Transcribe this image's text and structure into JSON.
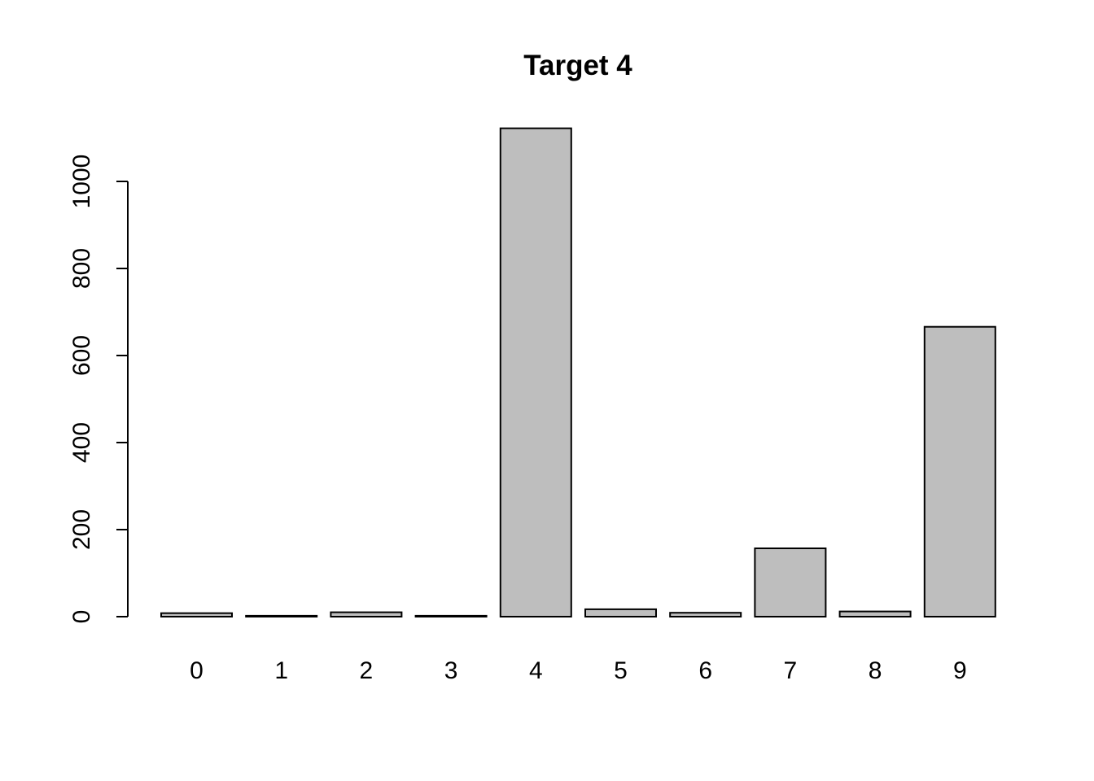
{
  "chart_data": {
    "type": "bar",
    "title": "Target 4",
    "xlabel": "",
    "ylabel": "",
    "categories": [
      "0",
      "1",
      "2",
      "3",
      "4",
      "5",
      "6",
      "7",
      "8",
      "9"
    ],
    "values": [
      8,
      2,
      10,
      2,
      1122,
      17,
      9,
      157,
      12,
      666
    ],
    "ylim": [
      0,
      1122
    ],
    "yticks": [
      0,
      200,
      400,
      600,
      800,
      1000
    ],
    "grid": false,
    "legend": "none",
    "bar_color": "#bebebe",
    "bar_border_color": "#000000"
  }
}
